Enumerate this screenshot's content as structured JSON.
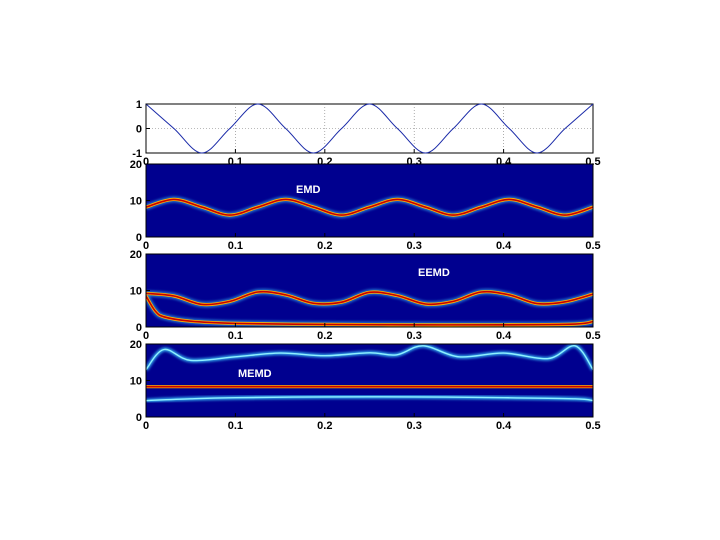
{
  "chart_data": [
    {
      "type": "line",
      "xlim": [
        0,
        0.5
      ],
      "ylim": [
        -1,
        1
      ],
      "x_ticks": [
        "0",
        "0.1",
        "0.2",
        "0.3",
        "0.4",
        "0.5"
      ],
      "y_ticks": [
        "1",
        "0",
        "-1"
      ],
      "grid": true,
      "series": [
        {
          "color": "#1a2aa8",
          "x": [
            0,
            0.03125,
            0.0625,
            0.09375,
            0.125,
            0.15625,
            0.1875,
            0.21875,
            0.25,
            0.28125,
            0.3125,
            0.34375,
            0.375,
            0.40625,
            0.4375,
            0.46875,
            0.5
          ],
          "y": [
            1,
            0,
            -1,
            0,
            1,
            0,
            -1,
            0,
            1,
            0,
            -1,
            0,
            1,
            0,
            -1,
            0,
            1
          ]
        }
      ]
    },
    {
      "type": "heatmap",
      "title": "EMD",
      "xlim": [
        0,
        0.5
      ],
      "ylim": [
        0,
        20
      ],
      "x_ticks": [
        "0",
        "0.1",
        "0.2",
        "0.3",
        "0.4",
        "0.5"
      ],
      "y_ticks": [
        "20",
        "10",
        "0"
      ],
      "ridges": [
        {
          "x": [
            0,
            0.03125,
            0.0625,
            0.09375,
            0.125,
            0.15625,
            0.1875,
            0.21875,
            0.25,
            0.28125,
            0.3125,
            0.34375,
            0.375,
            0.40625,
            0.4375,
            0.46875,
            0.5
          ],
          "y": [
            8.2,
            10.3,
            8.2,
            6.0,
            8.2,
            10.3,
            8.2,
            6.0,
            8.2,
            10.3,
            8.2,
            6.0,
            8.2,
            10.3,
            8.2,
            6.0,
            8.2
          ]
        }
      ]
    },
    {
      "type": "heatmap",
      "title": "EEMD",
      "xlim": [
        0,
        0.5
      ],
      "ylim": [
        0,
        20
      ],
      "x_ticks": [
        "0",
        "0.1",
        "0.2",
        "0.3",
        "0.4",
        "0.5"
      ],
      "y_ticks": [
        "20",
        "10",
        "0"
      ],
      "ridges": [
        {
          "x": [
            0,
            0.03125,
            0.0625,
            0.09375,
            0.125,
            0.15625,
            0.1875,
            0.21875,
            0.25,
            0.28125,
            0.3125,
            0.34375,
            0.375,
            0.40625,
            0.4375,
            0.46875,
            0.5
          ],
          "y": [
            9.2,
            8.5,
            6.2,
            7.0,
            9.6,
            8.8,
            6.5,
            6.8,
            9.5,
            8.6,
            6.3,
            7.0,
            9.6,
            8.8,
            6.4,
            6.9,
            9.0
          ]
        },
        {
          "x": [
            0,
            0.01,
            0.02,
            0.05,
            0.1,
            0.2,
            0.3,
            0.4,
            0.48,
            0.5
          ],
          "y": [
            8.5,
            4.5,
            2.8,
            1.6,
            1.0,
            0.7,
            0.6,
            0.6,
            0.8,
            1.5
          ]
        }
      ]
    },
    {
      "type": "heatmap",
      "title": "MEMD",
      "xlim": [
        0,
        0.5
      ],
      "ylim": [
        0,
        20
      ],
      "x_ticks": [
        "0",
        "0.1",
        "0.2",
        "0.3",
        "0.4",
        "0.5"
      ],
      "y_ticks": [
        "20",
        "10",
        "0"
      ],
      "ridges": [
        {
          "x": [
            0,
            0.1,
            0.2,
            0.3,
            0.4,
            0.5
          ],
          "y": [
            8.3,
            8.3,
            8.3,
            8.3,
            8.3,
            8.3
          ]
        },
        {
          "x": [
            0,
            0.02,
            0.05,
            0.1,
            0.15,
            0.2,
            0.25,
            0.28,
            0.31,
            0.35,
            0.4,
            0.45,
            0.48,
            0.5
          ],
          "y": [
            13,
            18.5,
            15.5,
            16.5,
            17.5,
            16.8,
            17.6,
            17.0,
            19.5,
            16.5,
            17.5,
            16.0,
            19.5,
            13
          ]
        },
        {
          "x": [
            0,
            0.05,
            0.1,
            0.2,
            0.3,
            0.4,
            0.48,
            0.5
          ],
          "y": [
            4.5,
            5.0,
            5.3,
            5.5,
            5.5,
            5.3,
            5.0,
            4.5
          ]
        }
      ]
    }
  ],
  "colors": {
    "heatmap_background": "#00008f",
    "ridge_core": "#c80000",
    "ridge_mid": "#ffb400",
    "ridge_glow": "#3cc8ff"
  }
}
